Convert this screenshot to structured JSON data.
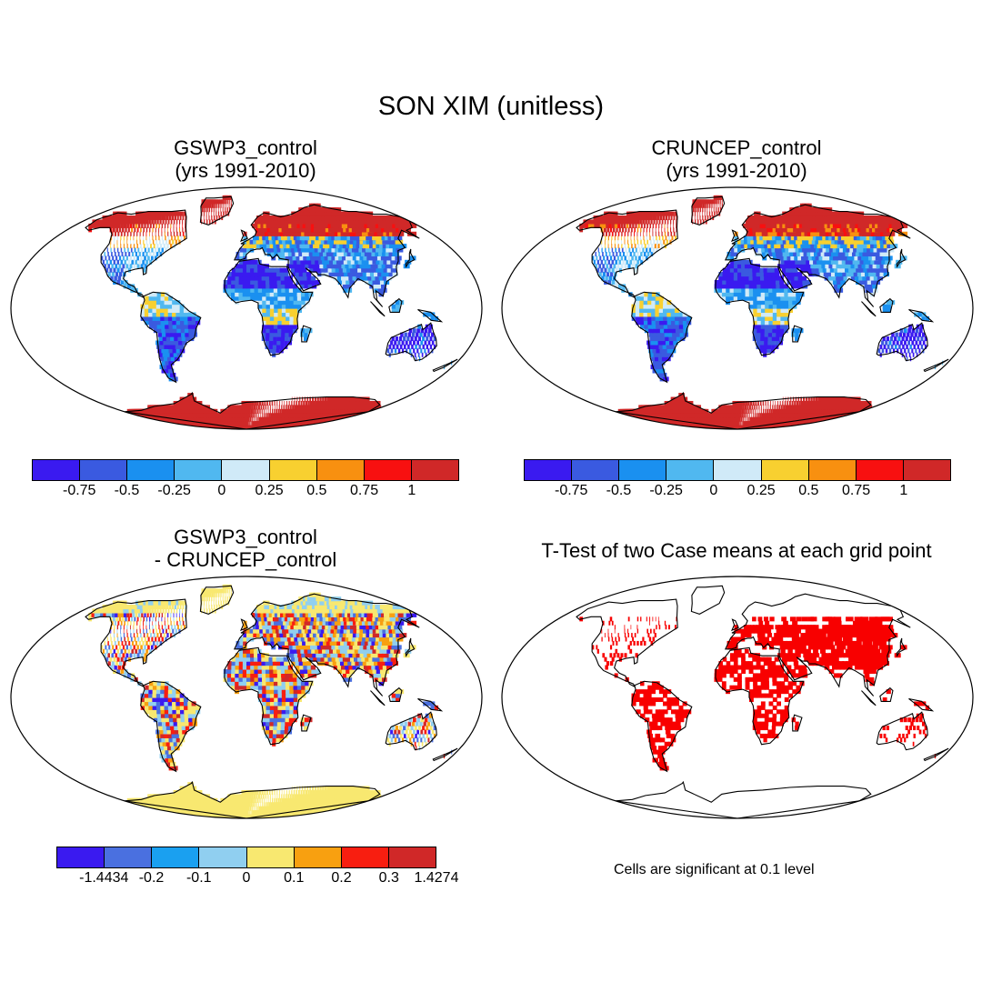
{
  "figure": {
    "title": "SON XIM (unitless)"
  },
  "panels": [
    {
      "id": "gswp3",
      "title_lines": [
        "GSWP3_control",
        "(yrs 1991-2010)"
      ],
      "field": "abs"
    },
    {
      "id": "cruncep",
      "title_lines": [
        "CRUNCEP_control",
        "(yrs 1991-2010)"
      ],
      "field": "abs"
    },
    {
      "id": "difference",
      "title_lines": [
        "GSWP3_control",
        "- CRUNCEP_control"
      ],
      "field": "diff"
    },
    {
      "id": "ttest",
      "title_lines": [
        "T-Test of two Case means at each grid point"
      ],
      "field": "sig"
    }
  ],
  "colorbars": {
    "absolute": {
      "colors": [
        "#3a1af0",
        "#3a5ae0",
        "#1a90f0",
        "#50b8f0",
        "#d0eaf8",
        "#f8d030",
        "#f89010",
        "#f81010",
        "#d02828"
      ],
      "tick_labels": [
        "-0.75",
        "-0.5",
        "-0.25",
        "0",
        "0.25",
        "0.5",
        "0.75",
        "1"
      ]
    },
    "difference": {
      "colors": [
        "#3a1af0",
        "#4a70e0",
        "#1aa0f0",
        "#90cff0",
        "#f8e870",
        "#f8a010",
        "#f81e10",
        "#d02828"
      ],
      "tick_labels": [
        "-1.4434",
        "-0.2",
        "-0.1",
        "0",
        "0.1",
        "0.2",
        "0.3",
        "1.4274"
      ]
    }
  },
  "ttest_note": "Cells are significant at 0.1 level",
  "significance_color": "#f80000"
}
